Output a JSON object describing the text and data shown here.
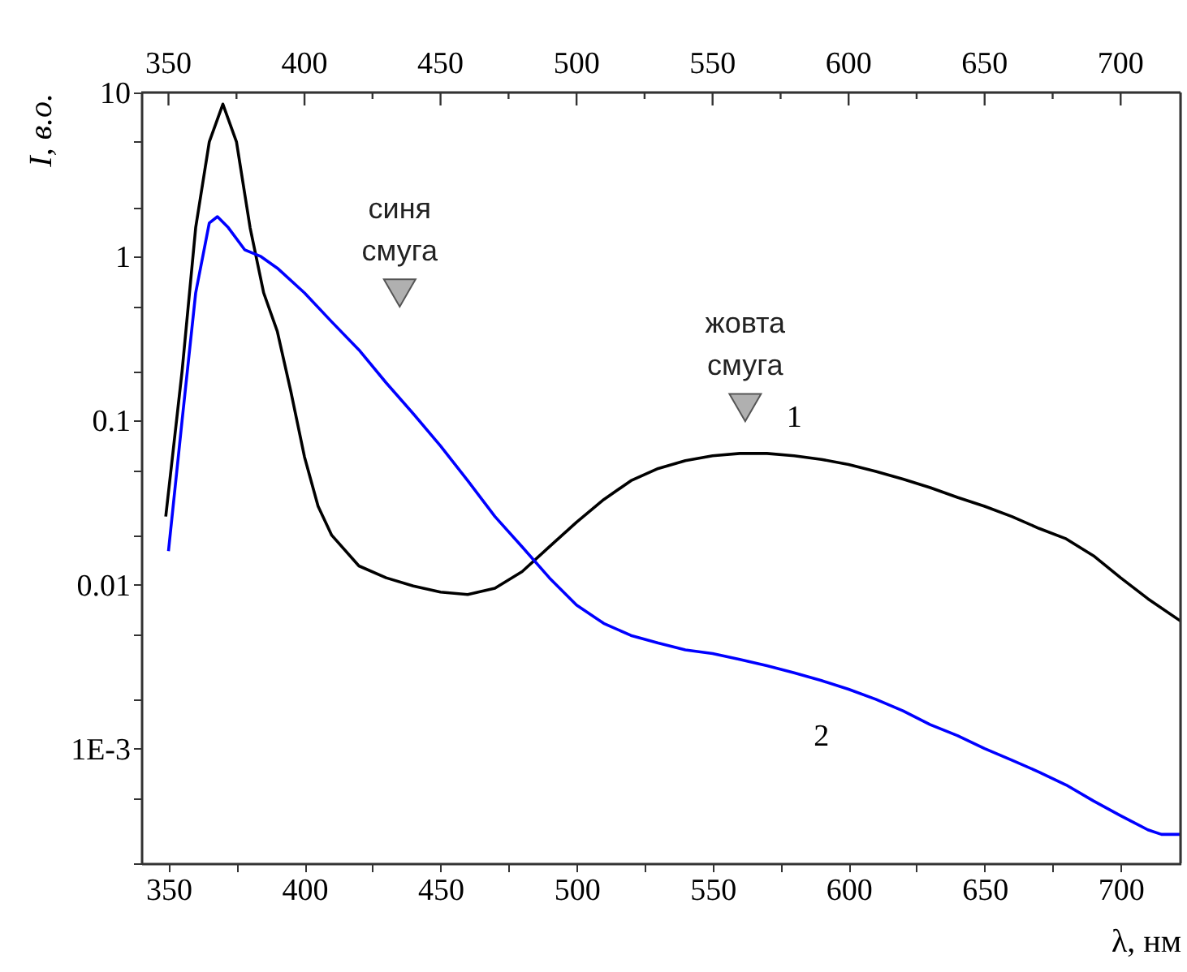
{
  "chart_data": {
    "type": "line",
    "xlabel": "λ, нм",
    "ylabel": "I, в.о.",
    "log": "y",
    "grid": false,
    "legend": false,
    "marker": "none",
    "line_style": "solid",
    "xlim": [
      340,
      722
    ],
    "ylim": [
      0.0002,
      10
    ],
    "xticks": [
      350,
      {
        "value": 375,
        "label": null
      },
      400,
      {
        "value": 425,
        "label": null
      },
      450,
      {
        "value": 475,
        "label": null
      },
      500,
      {
        "value": 525,
        "label": null
      },
      550,
      {
        "value": 575,
        "label": null
      },
      600,
      {
        "value": 625,
        "label": null
      },
      650,
      {
        "value": 675,
        "label": null
      },
      700
    ],
    "x2lim": [
      340,
      722
    ],
    "x2ticks": [
      350,
      {
        "value": 375,
        "label": null
      },
      400,
      {
        "value": 425,
        "label": null
      },
      450,
      {
        "value": 475,
        "label": null
      },
      500,
      {
        "value": 525,
        "label": null
      },
      550,
      {
        "value": 575,
        "label": null
      },
      600,
      {
        "value": 625,
        "label": null
      },
      650,
      {
        "value": 675,
        "label": null
      },
      700
    ],
    "yticks": [
      {
        "value": 0.0002,
        "label": null
      },
      {
        "value": 0.0005,
        "label": null
      },
      {
        "value": 0.001,
        "label": "1E-3"
      },
      {
        "value": 0.002,
        "label": null
      },
      {
        "value": 0.005,
        "label": null
      },
      0.01,
      {
        "value": 0.02,
        "label": null
      },
      {
        "value": 0.05,
        "label": null
      },
      0.1,
      {
        "value": 0.2,
        "label": null
      },
      {
        "value": 0.5,
        "label": null
      },
      1,
      {
        "value": 2,
        "label": null
      },
      {
        "value": 5,
        "label": null
      },
      10
    ],
    "annotations": [
      {
        "text": "синя смуга",
        "x": 435,
        "y": 0.6
      },
      {
        "text": "жовта смуга",
        "x": 562,
        "y": 0.12
      }
    ],
    "series": [
      {
        "name": "1",
        "color": "#000000",
        "x": [
          349,
          355,
          360,
          365,
          370,
          375,
          380,
          385,
          390,
          395,
          400,
          405,
          410,
          420,
          430,
          440,
          450,
          460,
          470,
          480,
          490,
          500,
          510,
          520,
          530,
          540,
          550,
          560,
          570,
          580,
          590,
          600,
          610,
          620,
          630,
          640,
          650,
          660,
          670,
          680,
          690,
          700,
          710,
          722
        ],
        "values": [
          0.026,
          0.2,
          1.5,
          5,
          8.5,
          5,
          1.5,
          0.6,
          0.35,
          0.15,
          0.06,
          0.03,
          0.02,
          0.013,
          0.011,
          0.0098,
          0.009,
          0.0087,
          0.0095,
          0.012,
          0.017,
          0.024,
          0.033,
          0.043,
          0.051,
          0.057,
          0.061,
          0.063,
          0.063,
          0.061,
          0.058,
          0.054,
          0.049,
          0.044,
          0.039,
          0.034,
          0.03,
          0.026,
          0.022,
          0.019,
          0.015,
          0.011,
          0.0082,
          0.006
        ]
      },
      {
        "name": "2",
        "color": "#0000ff",
        "x": [
          350,
          355,
          360,
          365,
          368,
          372,
          378,
          384,
          390,
          400,
          410,
          420,
          430,
          440,
          450,
          460,
          470,
          480,
          490,
          500,
          510,
          520,
          530,
          540,
          550,
          560,
          570,
          580,
          590,
          600,
          610,
          620,
          630,
          640,
          650,
          660,
          670,
          680,
          690,
          700,
          710,
          715,
          722
        ],
        "values": [
          0.016,
          0.1,
          0.6,
          1.6,
          1.75,
          1.5,
          1.1,
          1.0,
          0.85,
          0.6,
          0.4,
          0.27,
          0.17,
          0.11,
          0.07,
          0.043,
          0.026,
          0.017,
          0.011,
          0.0075,
          0.0058,
          0.0049,
          0.0044,
          0.004,
          0.0038,
          0.0035,
          0.0032,
          0.0029,
          0.0026,
          0.0023,
          0.002,
          0.0017,
          0.0014,
          0.0012,
          0.001,
          0.00085,
          0.00072,
          0.0006,
          0.00048,
          0.00039,
          0.00032,
          0.0003,
          0.0003
        ]
      }
    ]
  }
}
